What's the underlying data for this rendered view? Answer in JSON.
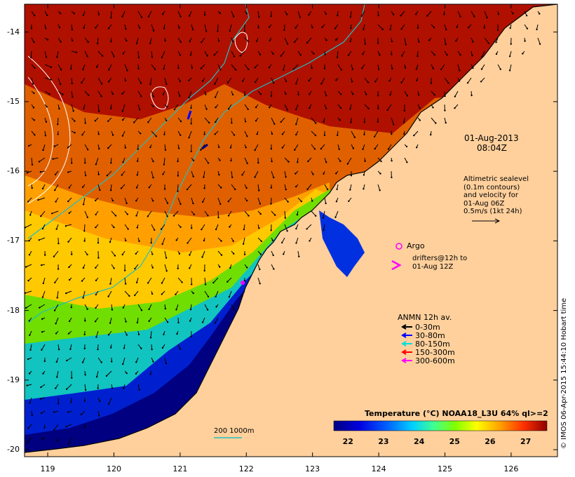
{
  "map": {
    "date": "01-Aug-2013",
    "time": "08:04Z",
    "altimetry_note": [
      "Altimetric sealevel",
      "(0.1m contours)",
      "and velocity for",
      "01-Aug 06Z",
      "0.5m/s (1kt 24h)"
    ],
    "argo_label": "Argo",
    "drifter_note": [
      "drifters@12h to",
      "01-Aug 12Z"
    ],
    "anmn_title": "ANMN 12h av.",
    "anmn_legend": [
      {
        "label": "0-30m",
        "color": "#000000"
      },
      {
        "label": "30-80m",
        "color": "#0000ff"
      },
      {
        "label": "80-150m",
        "color": "#00e0e0"
      },
      {
        "label": "150-300m",
        "color": "#ff0000"
      },
      {
        "label": "300-600m",
        "color": "#ff00ff"
      }
    ],
    "contour_label": "200  1000m",
    "colorbar_title": "Temperature (°C) NOAA18_L3U 64% ql>=2",
    "colorbar_ticks": [
      "22",
      "23",
      "24",
      "25",
      "26",
      "27"
    ],
    "colorbar_range": [
      21.6,
      27.6
    ],
    "y_ticks": [
      "-14",
      "-15",
      "-16",
      "-17",
      "-18",
      "-19",
      "-20"
    ],
    "x_ticks": [
      "119",
      "120",
      "121",
      "122",
      "123",
      "124",
      "125",
      "126"
    ],
    "lat_range": [
      -20.1,
      -13.6
    ],
    "lon_range": [
      118.65,
      126.7
    ],
    "credit": "© IMOS 06-Apr-2015 15:44:10 Hobart time",
    "colors": {
      "land": "#ffd09c",
      "deep": "#000080",
      "warm": "#b01000"
    }
  }
}
